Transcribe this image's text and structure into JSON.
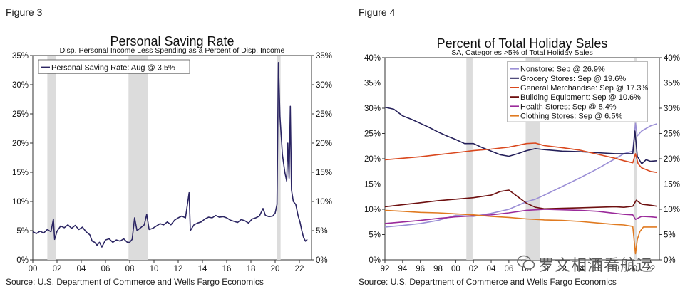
{
  "left": {
    "figure_label": "Figure 3",
    "source": "Source: U.S. Department of Commerce and Wells Fargo Economics",
    "chart_data": {
      "type": "line",
      "title": "Personal Saving Rate",
      "subtitle": "Disp. Personal Income Less Spending as a Percent of Disp. Income",
      "ylim": [
        0,
        35
      ],
      "xlim": [
        2000,
        2023
      ],
      "yticks": [
        "0%",
        "5%",
        "10%",
        "15%",
        "20%",
        "25%",
        "30%",
        "35%"
      ],
      "xticks": [
        "00",
        "02",
        "04",
        "06",
        "08",
        "10",
        "12",
        "14",
        "16",
        "18",
        "20",
        "22"
      ],
      "legend_position": "top-left",
      "recessions": [
        [
          2001.2,
          2001.9
        ],
        [
          2007.9,
          2009.5
        ],
        [
          2020.15,
          2020.45
        ]
      ],
      "series": [
        {
          "name": "Personal Saving Rate: Aug @ 3.5%",
          "color": "#2b2563",
          "points": [
            [
              2000.0,
              4.8
            ],
            [
              2000.3,
              4.5
            ],
            [
              2000.6,
              4.9
            ],
            [
              2000.9,
              4.6
            ],
            [
              2001.2,
              5.2
            ],
            [
              2001.5,
              4.8
            ],
            [
              2001.7,
              7.0
            ],
            [
              2001.8,
              3.5
            ],
            [
              2002.0,
              4.9
            ],
            [
              2002.3,
              5.8
            ],
            [
              2002.6,
              5.5
            ],
            [
              2002.9,
              6.0
            ],
            [
              2003.2,
              5.4
            ],
            [
              2003.5,
              5.9
            ],
            [
              2003.8,
              5.2
            ],
            [
              2004.1,
              5.6
            ],
            [
              2004.4,
              4.8
            ],
            [
              2004.7,
              4.3
            ],
            [
              2004.9,
              3.2
            ],
            [
              2005.1,
              3.0
            ],
            [
              2005.3,
              2.5
            ],
            [
              2005.5,
              3.0
            ],
            [
              2005.7,
              2.2
            ],
            [
              2006.0,
              3.4
            ],
            [
              2006.3,
              3.6
            ],
            [
              2006.6,
              3.0
            ],
            [
              2006.9,
              3.4
            ],
            [
              2007.2,
              3.2
            ],
            [
              2007.5,
              3.6
            ],
            [
              2007.8,
              3.0
            ],
            [
              2008.0,
              3.0
            ],
            [
              2008.2,
              3.5
            ],
            [
              2008.4,
              7.2
            ],
            [
              2008.6,
              5.0
            ],
            [
              2008.9,
              5.5
            ],
            [
              2009.2,
              6.0
            ],
            [
              2009.4,
              7.8
            ],
            [
              2009.6,
              5.2
            ],
            [
              2009.9,
              5.4
            ],
            [
              2010.2,
              5.8
            ],
            [
              2010.5,
              6.2
            ],
            [
              2010.8,
              6.0
            ],
            [
              2011.1,
              6.5
            ],
            [
              2011.4,
              6.0
            ],
            [
              2011.7,
              6.8
            ],
            [
              2012.0,
              7.2
            ],
            [
              2012.3,
              7.5
            ],
            [
              2012.6,
              7.2
            ],
            [
              2012.9,
              11.5
            ],
            [
              2013.0,
              5.0
            ],
            [
              2013.3,
              6.0
            ],
            [
              2013.6,
              6.3
            ],
            [
              2013.9,
              6.5
            ],
            [
              2014.2,
              7.0
            ],
            [
              2014.5,
              7.3
            ],
            [
              2014.8,
              7.2
            ],
            [
              2015.1,
              7.6
            ],
            [
              2015.4,
              7.3
            ],
            [
              2015.7,
              7.4
            ],
            [
              2016.0,
              7.2
            ],
            [
              2016.3,
              6.8
            ],
            [
              2016.6,
              6.6
            ],
            [
              2016.9,
              6.4
            ],
            [
              2017.2,
              6.9
            ],
            [
              2017.5,
              6.7
            ],
            [
              2017.8,
              6.3
            ],
            [
              2018.1,
              7.0
            ],
            [
              2018.4,
              7.2
            ],
            [
              2018.7,
              7.5
            ],
            [
              2019.0,
              8.8
            ],
            [
              2019.2,
              7.6
            ],
            [
              2019.5,
              7.4
            ],
            [
              2019.8,
              7.5
            ],
            [
              2020.0,
              8.0
            ],
            [
              2020.15,
              9.5
            ],
            [
              2020.27,
              33.8
            ],
            [
              2020.4,
              24.5
            ],
            [
              2020.6,
              18.0
            ],
            [
              2020.8,
              15.0
            ],
            [
              2020.95,
              13.5
            ],
            [
              2021.05,
              20.0
            ],
            [
              2021.15,
              14.0
            ],
            [
              2021.25,
              26.3
            ],
            [
              2021.35,
              12.0
            ],
            [
              2021.5,
              10.0
            ],
            [
              2021.7,
              9.5
            ],
            [
              2021.9,
              7.5
            ],
            [
              2022.05,
              6.5
            ],
            [
              2022.2,
              5.0
            ],
            [
              2022.35,
              3.8
            ],
            [
              2022.5,
              3.2
            ],
            [
              2022.65,
              3.5
            ]
          ]
        }
      ]
    }
  },
  "right": {
    "figure_label": "Figure 4",
    "source": "Source: U.S. Department of Commerce and Wells Fargo Economics",
    "chart_data": {
      "type": "line",
      "title": "Percent of Total Holiday Sales",
      "subtitle": "SA, Categories >5% of Total Holiday Sales",
      "ylim": [
        0,
        40
      ],
      "xlim": [
        1992,
        2023
      ],
      "yticks": [
        "0%",
        "5%",
        "10%",
        "15%",
        "20%",
        "25%",
        "30%",
        "35%",
        "40%"
      ],
      "xticks": [
        "92",
        "94",
        "96",
        "98",
        "00",
        "02",
        "04",
        "06",
        "08",
        "10",
        "12",
        "14",
        "16",
        "18",
        "20",
        "22"
      ],
      "legend_position": "top-right",
      "recessions": [
        [
          2001.2,
          2001.9
        ],
        [
          2007.9,
          2009.5
        ],
        [
          2020.15,
          2020.45
        ]
      ],
      "series": [
        {
          "name": "Nonstore: Sep @ 26.9%",
          "color": "#9b8fd6",
          "points": [
            [
              1992,
              6.5
            ],
            [
              1994,
              6.8
            ],
            [
              1996,
              7.2
            ],
            [
              1998,
              7.8
            ],
            [
              2000,
              8.8
            ],
            [
              2002,
              8.6
            ],
            [
              2004,
              9.2
            ],
            [
              2006,
              10.0
            ],
            [
              2008,
              11.5
            ],
            [
              2009,
              12.0
            ],
            [
              2010,
              12.8
            ],
            [
              2012,
              14.5
            ],
            [
              2014,
              16.2
            ],
            [
              2016,
              18.0
            ],
            [
              2018,
              20.0
            ],
            [
              2019,
              21.0
            ],
            [
              2020.0,
              21.5
            ],
            [
              2020.3,
              27.0
            ],
            [
              2020.5,
              24.5
            ],
            [
              2021,
              25.5
            ],
            [
              2022,
              26.5
            ],
            [
              2022.7,
              26.9
            ]
          ]
        },
        {
          "name": "Grocery Stores: Sep @ 19.6%",
          "color": "#25205a",
          "points": [
            [
              1992,
              30.2
            ],
            [
              1993,
              29.8
            ],
            [
              1994,
              28.5
            ],
            [
              1995,
              27.8
            ],
            [
              1996,
              27.0
            ],
            [
              1997,
              26.2
            ],
            [
              1998,
              25.3
            ],
            [
              1999,
              24.5
            ],
            [
              2000,
              23.8
            ],
            [
              2001,
              23.0
            ],
            [
              2002,
              23.0
            ],
            [
              2003,
              22.2
            ],
            [
              2004,
              21.5
            ],
            [
              2005,
              20.8
            ],
            [
              2006,
              20.5
            ],
            [
              2007,
              21.0
            ],
            [
              2008,
              21.6
            ],
            [
              2009,
              22.0
            ],
            [
              2010,
              21.8
            ],
            [
              2012,
              21.5
            ],
            [
              2014,
              21.4
            ],
            [
              2016,
              21.2
            ],
            [
              2018,
              21.0
            ],
            [
              2019,
              21.0
            ],
            [
              2020.0,
              21.0
            ],
            [
              2020.25,
              25.5
            ],
            [
              2020.5,
              20.5
            ],
            [
              2021,
              19.0
            ],
            [
              2021.5,
              19.8
            ],
            [
              2022,
              19.5
            ],
            [
              2022.7,
              19.6
            ]
          ]
        },
        {
          "name": "General Merchandise: Sep @ 17.3%",
          "color": "#d9481e",
          "points": [
            [
              1992,
              19.8
            ],
            [
              1994,
              20.1
            ],
            [
              1996,
              20.4
            ],
            [
              1998,
              20.8
            ],
            [
              2000,
              21.2
            ],
            [
              2002,
              21.6
            ],
            [
              2004,
              21.9
            ],
            [
              2006,
              22.3
            ],
            [
              2008,
              23.0
            ],
            [
              2009,
              23.1
            ],
            [
              2010,
              22.6
            ],
            [
              2012,
              22.2
            ],
            [
              2014,
              21.7
            ],
            [
              2016,
              20.9
            ],
            [
              2018,
              20.1
            ],
            [
              2019,
              19.6
            ],
            [
              2020.0,
              19.2
            ],
            [
              2020.3,
              21.0
            ],
            [
              2020.6,
              19.0
            ],
            [
              2021,
              18.2
            ],
            [
              2022,
              17.5
            ],
            [
              2022.7,
              17.3
            ]
          ]
        },
        {
          "name": "Building Equipment: Sep @ 10.6%",
          "color": "#6e1010",
          "points": [
            [
              1992,
              10.5
            ],
            [
              1994,
              10.9
            ],
            [
              1996,
              11.3
            ],
            [
              1998,
              11.7
            ],
            [
              2000,
              12.0
            ],
            [
              2002,
              12.3
            ],
            [
              2004,
              12.8
            ],
            [
              2005,
              13.5
            ],
            [
              2006,
              13.8
            ],
            [
              2007,
              12.5
            ],
            [
              2008,
              11.2
            ],
            [
              2009,
              10.4
            ],
            [
              2010,
              10.1
            ],
            [
              2012,
              10.2
            ],
            [
              2014,
              10.3
            ],
            [
              2016,
              10.4
            ],
            [
              2018,
              10.5
            ],
            [
              2019,
              10.4
            ],
            [
              2020.0,
              10.6
            ],
            [
              2020.4,
              11.8
            ],
            [
              2021,
              11.0
            ],
            [
              2022,
              10.8
            ],
            [
              2022.7,
              10.6
            ]
          ]
        },
        {
          "name": "Health Stores: Sep @ 8.4%",
          "color": "#9a2a9a",
          "points": [
            [
              1992,
              7.2
            ],
            [
              1994,
              7.5
            ],
            [
              1996,
              7.8
            ],
            [
              1998,
              8.2
            ],
            [
              2000,
              8.5
            ],
            [
              2002,
              8.7
            ],
            [
              2004,
              8.9
            ],
            [
              2006,
              9.3
            ],
            [
              2008,
              9.8
            ],
            [
              2010,
              10.0
            ],
            [
              2012,
              9.9
            ],
            [
              2014,
              9.8
            ],
            [
              2016,
              9.6
            ],
            [
              2018,
              9.2
            ],
            [
              2019,
              9.0
            ],
            [
              2020.0,
              8.9
            ],
            [
              2020.3,
              8.0
            ],
            [
              2021,
              8.6
            ],
            [
              2022,
              8.5
            ],
            [
              2022.7,
              8.4
            ]
          ]
        },
        {
          "name": "Clothing Stores: Sep @ 6.5%",
          "color": "#e07a20",
          "points": [
            [
              1992,
              9.8
            ],
            [
              1994,
              9.6
            ],
            [
              1996,
              9.4
            ],
            [
              1998,
              9.3
            ],
            [
              2000,
              9.1
            ],
            [
              2002,
              8.9
            ],
            [
              2004,
              8.6
            ],
            [
              2006,
              8.4
            ],
            [
              2008,
              8.1
            ],
            [
              2010,
              7.9
            ],
            [
              2012,
              7.8
            ],
            [
              2014,
              7.6
            ],
            [
              2016,
              7.3
            ],
            [
              2018,
              7.0
            ],
            [
              2019,
              6.9
            ],
            [
              2020.0,
              6.6
            ],
            [
              2020.3,
              1.2
            ],
            [
              2020.5,
              4.0
            ],
            [
              2020.8,
              5.6
            ],
            [
              2021.2,
              6.5
            ],
            [
              2022,
              6.5
            ],
            [
              2022.7,
              6.5
            ]
          ]
        }
      ]
    }
  },
  "watermark": "罗文相酒看航运"
}
